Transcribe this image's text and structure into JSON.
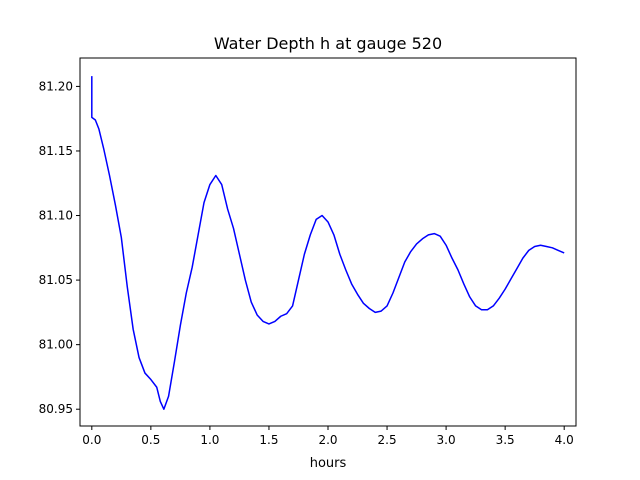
{
  "chart_data": {
    "type": "line",
    "title": "Water Depth h at gauge 520",
    "xlabel": "hours",
    "ylabel": "",
    "xlim": [
      -0.1,
      4.1
    ],
    "ylim": [
      80.937,
      81.222
    ],
    "xticks": [
      0.0,
      0.5,
      1.0,
      1.5,
      2.0,
      2.5,
      3.0,
      3.5,
      4.0
    ],
    "xtick_labels": [
      "0.0",
      "0.5",
      "1.0",
      "1.5",
      "2.0",
      "2.5",
      "3.0",
      "3.5",
      "4.0"
    ],
    "yticks": [
      80.95,
      81.0,
      81.05,
      81.1,
      81.15,
      81.2
    ],
    "ytick_labels": [
      "80.95",
      "81.00",
      "81.05",
      "81.10",
      "81.15",
      "81.20"
    ],
    "grid": false,
    "legend": "none",
    "series": [
      {
        "color": "#0000ff",
        "points": [
          [
            0.0,
            81.208
          ],
          [
            0.0,
            81.176
          ],
          [
            0.03,
            81.174
          ],
          [
            0.06,
            81.167
          ],
          [
            0.1,
            81.152
          ],
          [
            0.15,
            81.131
          ],
          [
            0.2,
            81.108
          ],
          [
            0.25,
            81.083
          ],
          [
            0.3,
            81.045
          ],
          [
            0.35,
            81.012
          ],
          [
            0.4,
            80.99
          ],
          [
            0.45,
            80.978
          ],
          [
            0.5,
            80.973
          ],
          [
            0.55,
            80.967
          ],
          [
            0.58,
            80.956
          ],
          [
            0.61,
            80.95
          ],
          [
            0.65,
            80.96
          ],
          [
            0.7,
            80.987
          ],
          [
            0.75,
            81.015
          ],
          [
            0.8,
            81.04
          ],
          [
            0.85,
            81.06
          ],
          [
            0.9,
            81.085
          ],
          [
            0.95,
            81.11
          ],
          [
            1.0,
            81.124
          ],
          [
            1.05,
            81.131
          ],
          [
            1.1,
            81.124
          ],
          [
            1.15,
            81.105
          ],
          [
            1.2,
            81.09
          ],
          [
            1.25,
            81.07
          ],
          [
            1.3,
            81.05
          ],
          [
            1.35,
            81.033
          ],
          [
            1.4,
            81.023
          ],
          [
            1.45,
            81.018
          ],
          [
            1.5,
            81.016
          ],
          [
            1.55,
            81.018
          ],
          [
            1.6,
            81.022
          ],
          [
            1.65,
            81.024
          ],
          [
            1.7,
            81.03
          ],
          [
            1.75,
            81.05
          ],
          [
            1.8,
            81.07
          ],
          [
            1.85,
            81.085
          ],
          [
            1.9,
            81.097
          ],
          [
            1.95,
            81.1
          ],
          [
            2.0,
            81.095
          ],
          [
            2.05,
            81.085
          ],
          [
            2.1,
            81.07
          ],
          [
            2.15,
            81.058
          ],
          [
            2.2,
            81.047
          ],
          [
            2.25,
            81.039
          ],
          [
            2.3,
            81.032
          ],
          [
            2.35,
            81.028
          ],
          [
            2.4,
            81.025
          ],
          [
            2.45,
            81.026
          ],
          [
            2.5,
            81.03
          ],
          [
            2.55,
            81.04
          ],
          [
            2.6,
            81.052
          ],
          [
            2.65,
            81.064
          ],
          [
            2.7,
            81.072
          ],
          [
            2.75,
            81.078
          ],
          [
            2.8,
            81.082
          ],
          [
            2.85,
            81.085
          ],
          [
            2.9,
            81.086
          ],
          [
            2.95,
            81.084
          ],
          [
            3.0,
            81.077
          ],
          [
            3.05,
            81.067
          ],
          [
            3.1,
            81.058
          ],
          [
            3.15,
            81.047
          ],
          [
            3.2,
            81.037
          ],
          [
            3.25,
            81.03
          ],
          [
            3.3,
            81.027
          ],
          [
            3.35,
            81.027
          ],
          [
            3.4,
            81.03
          ],
          [
            3.45,
            81.036
          ],
          [
            3.5,
            81.043
          ],
          [
            3.55,
            81.051
          ],
          [
            3.6,
            81.059
          ],
          [
            3.65,
            81.067
          ],
          [
            3.7,
            81.073
          ],
          [
            3.75,
            81.076
          ],
          [
            3.8,
            81.077
          ],
          [
            3.85,
            81.076
          ],
          [
            3.9,
            81.075
          ],
          [
            3.95,
            81.073
          ],
          [
            4.0,
            81.071
          ]
        ]
      }
    ]
  }
}
